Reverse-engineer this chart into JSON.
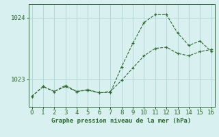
{
  "line1_x": [
    0,
    1,
    2,
    3,
    4,
    5,
    6,
    7,
    8,
    9,
    10,
    11,
    12,
    13,
    14,
    15,
    16
  ],
  "line1_y": [
    1022.72,
    1022.88,
    1022.8,
    1022.88,
    1022.8,
    1022.82,
    1022.78,
    1022.8,
    1022.98,
    1023.18,
    1023.38,
    1023.5,
    1023.52,
    1023.42,
    1023.38,
    1023.45,
    1023.48
  ],
  "line2_x": [
    0,
    1,
    2,
    3,
    4,
    5,
    6,
    7,
    8,
    9,
    10,
    11,
    12,
    13,
    14,
    15,
    16
  ],
  "line2_y": [
    1022.72,
    1022.88,
    1022.8,
    1022.9,
    1022.8,
    1022.83,
    1022.78,
    1022.78,
    1023.2,
    1023.58,
    1023.92,
    1024.05,
    1024.05,
    1023.75,
    1023.55,
    1023.62,
    1023.45
  ],
  "line_color": "#2d6a2d",
  "bg_color": "#d8f0f0",
  "grid_color": "#aed4d4",
  "xlabel": "Graphe pression niveau de la mer (hPa)",
  "ylim": [
    1022.55,
    1024.22
  ],
  "xlim": [
    -0.3,
    16.3
  ],
  "yticks": [
    1023,
    1024
  ],
  "xticks": [
    0,
    1,
    2,
    3,
    4,
    5,
    6,
    7,
    8,
    9,
    10,
    11,
    12,
    13,
    14,
    15,
    16
  ]
}
